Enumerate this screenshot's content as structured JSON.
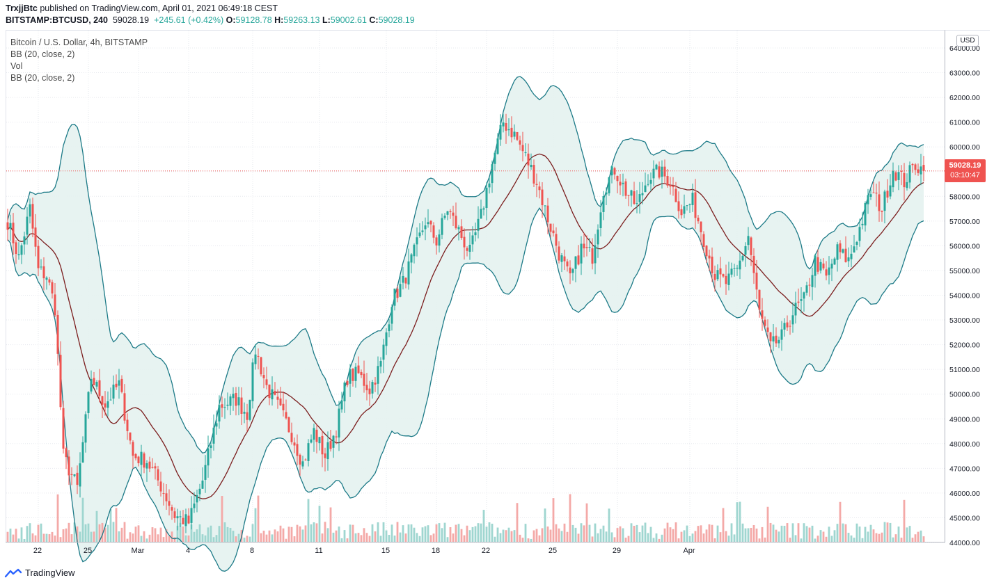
{
  "header": {
    "publisher": "TrxjjBtc",
    "published_text": "published on TradingView.com, April 01, 2021 06:49:18 CEST",
    "symbol": "BITSTAMP:BTCUSD, 240",
    "last": "59028.19",
    "change": "+245.61 (+0.42%)",
    "o_label": "O:",
    "o_value": "59128.78",
    "h_label": "H:",
    "h_value": "59263.13",
    "l_label": "L:",
    "l_value": "59002.61",
    "c_label": "C:",
    "c_value": "59028.19"
  },
  "legend": {
    "title": "Bitcoin / U.S. Dollar, 4h, BITSTAMP",
    "indicator1": "BB (20, close, 2)",
    "indicator2": "Vol",
    "indicator3": "BB (20, close, 2)"
  },
  "price_axis": {
    "currency": "USD"
  },
  "price_tag": {
    "price": "59028.19",
    "countdown": "03:10:47"
  },
  "footer": {
    "brand": "TradingView"
  },
  "colors": {
    "up": "#26a69a",
    "down": "#ef5350",
    "band": "#1c7a87",
    "band_fill": "#e4f2f0",
    "basis": "#7b1d1d",
    "vol_up": "#9fd6d0",
    "vol_down": "#f4a9a7"
  },
  "chart_data": {
    "type": "candlestick",
    "symbol": "BITSTAMP:BTCUSD",
    "interval": "4h",
    "ylim": [
      44000,
      64000
    ],
    "y_ticks": [
      "44000.00",
      "45000.00",
      "46000.00",
      "47000.00",
      "48000.00",
      "49000.00",
      "50000.00",
      "51000.00",
      "52000.00",
      "53000.00",
      "54000.00",
      "55000.00",
      "56000.00",
      "57000.00",
      "58000.00",
      "59000.00",
      "60000.00",
      "61000.00",
      "62000.00",
      "63000.00",
      "64000.00"
    ],
    "x_ticks": [
      "22",
      "25",
      "Mar",
      "4",
      "8",
      "11",
      "15",
      "18",
      "22",
      "25",
      "29",
      "Apr"
    ],
    "last_price": 59028.19,
    "anchors": [
      {
        "i": 0,
        "p": 57000
      },
      {
        "i": 4,
        "p": 55500
      },
      {
        "i": 8,
        "p": 57500
      },
      {
        "i": 11,
        "p": 55000
      },
      {
        "i": 14,
        "p": 54800
      },
      {
        "i": 17,
        "p": 53500
      },
      {
        "i": 20,
        "p": 47500
      },
      {
        "i": 25,
        "p": 46200
      },
      {
        "i": 30,
        "p": 50700
      },
      {
        "i": 35,
        "p": 49600
      },
      {
        "i": 40,
        "p": 50400
      },
      {
        "i": 45,
        "p": 47500
      },
      {
        "i": 50,
        "p": 47300
      },
      {
        "i": 55,
        "p": 46300
      },
      {
        "i": 60,
        "p": 45100
      },
      {
        "i": 65,
        "p": 44800
      },
      {
        "i": 70,
        "p": 46500
      },
      {
        "i": 76,
        "p": 49500
      },
      {
        "i": 82,
        "p": 49800
      },
      {
        "i": 86,
        "p": 49200
      },
      {
        "i": 89,
        "p": 51800
      },
      {
        "i": 93,
        "p": 50300
      },
      {
        "i": 97,
        "p": 49500
      },
      {
        "i": 102,
        "p": 48400
      },
      {
        "i": 106,
        "p": 47200
      },
      {
        "i": 110,
        "p": 48500
      },
      {
        "i": 114,
        "p": 47500
      },
      {
        "i": 118,
        "p": 48600
      },
      {
        "i": 122,
        "p": 50700
      },
      {
        "i": 126,
        "p": 50800
      },
      {
        "i": 130,
        "p": 50200
      },
      {
        "i": 134,
        "p": 51200
      },
      {
        "i": 138,
        "p": 53800
      },
      {
        "i": 142,
        "p": 54500
      },
      {
        "i": 146,
        "p": 55700
      },
      {
        "i": 150,
        "p": 57000
      },
      {
        "i": 154,
        "p": 56200
      },
      {
        "i": 158,
        "p": 57500
      },
      {
        "i": 162,
        "p": 56600
      },
      {
        "i": 166,
        "p": 55700
      },
      {
        "i": 170,
        "p": 57200
      },
      {
        "i": 174,
        "p": 59300
      },
      {
        "i": 178,
        "p": 61000
      },
      {
        "i": 182,
        "p": 60500
      },
      {
        "i": 186,
        "p": 59600
      },
      {
        "i": 190,
        "p": 58600
      },
      {
        "i": 194,
        "p": 57100
      },
      {
        "i": 198,
        "p": 55700
      },
      {
        "i": 202,
        "p": 54600
      },
      {
        "i": 206,
        "p": 55900
      },
      {
        "i": 210,
        "p": 55600
      },
      {
        "i": 214,
        "p": 58300
      },
      {
        "i": 218,
        "p": 59100
      },
      {
        "i": 222,
        "p": 58200
      },
      {
        "i": 226,
        "p": 57600
      },
      {
        "i": 230,
        "p": 58800
      },
      {
        "i": 234,
        "p": 59000
      },
      {
        "i": 238,
        "p": 58600
      },
      {
        "i": 242,
        "p": 57400
      },
      {
        "i": 246,
        "p": 57800
      },
      {
        "i": 250,
        "p": 56300
      },
      {
        "i": 254,
        "p": 54800
      },
      {
        "i": 258,
        "p": 54500
      },
      {
        "i": 262,
        "p": 55000
      },
      {
        "i": 266,
        "p": 56400
      },
      {
        "i": 270,
        "p": 53300
      },
      {
        "i": 274,
        "p": 51900
      },
      {
        "i": 278,
        "p": 52300
      },
      {
        "i": 282,
        "p": 53300
      },
      {
        "i": 286,
        "p": 53800
      },
      {
        "i": 290,
        "p": 55400
      },
      {
        "i": 294,
        "p": 54700
      },
      {
        "i": 298,
        "p": 55800
      },
      {
        "i": 302,
        "p": 55400
      },
      {
        "i": 306,
        "p": 56700
      },
      {
        "i": 310,
        "p": 58200
      },
      {
        "i": 314,
        "p": 57500
      },
      {
        "i": 318,
        "p": 59100
      },
      {
        "i": 322,
        "p": 58600
      },
      {
        "i": 326,
        "p": 59300
      },
      {
        "i": 329,
        "p": 59028
      }
    ]
  }
}
